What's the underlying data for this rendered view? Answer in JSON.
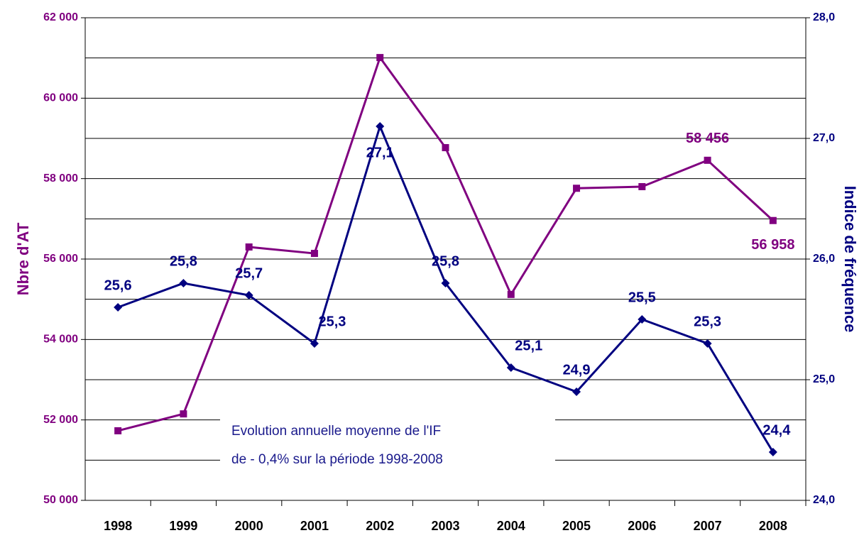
{
  "chart_data": {
    "type": "line",
    "annotation": [
      "Evolution annuelle moyenne de l'IF",
      "de - 0,4% sur la période 1998-2008"
    ],
    "ylabel": "Nbre d'AT",
    "y2label": "Indice de fréquence",
    "categories": [
      "1998",
      "1999",
      "2000",
      "2001",
      "2002",
      "2003",
      "2004",
      "2005",
      "2006",
      "2007",
      "2008"
    ],
    "series": [
      {
        "name": "Nbre d'AT",
        "color": "#800080",
        "values": [
          51730,
          52150,
          56300,
          56140,
          61010,
          58770,
          55120,
          57760,
          57800,
          58456,
          56958
        ],
        "value_labels": [
          null,
          null,
          null,
          null,
          null,
          null,
          null,
          null,
          null,
          "58 456",
          "56 958"
        ]
      },
      {
        "name": "Indice de fréquence",
        "color": "#000080",
        "axis": "y2",
        "values": [
          25.6,
          25.8,
          25.7,
          25.3,
          27.1,
          25.8,
          25.1,
          24.9,
          25.5,
          25.3,
          24.4
        ],
        "value_labels": [
          "25,6",
          "25,8",
          "25,7",
          "25,3",
          "27,1",
          "25,8",
          "25,1",
          "24,9",
          "25,5",
          "25,3",
          "24,4"
        ]
      }
    ],
    "ylim": [
      50000,
      62000
    ],
    "yticks": [
      {
        "value": 50000,
        "label": "50 000"
      },
      {
        "value": 52000,
        "label": "52 000"
      },
      {
        "value": 54000,
        "label": "54 000"
      },
      {
        "value": 56000,
        "label": "56 000"
      },
      {
        "value": 58000,
        "label": "58 000"
      },
      {
        "value": 60000,
        "label": "60 000"
      },
      {
        "value": 62000,
        "label": "62 000"
      }
    ],
    "y2lim": [
      24,
      28
    ],
    "y2ticks": [
      {
        "value": 24,
        "label": "24,0"
      },
      {
        "value": 25,
        "label": "25,0"
      },
      {
        "value": 26,
        "label": "26,0"
      },
      {
        "value": 27,
        "label": "27,0"
      },
      {
        "value": 28,
        "label": "28,0"
      }
    ],
    "grid": true
  }
}
